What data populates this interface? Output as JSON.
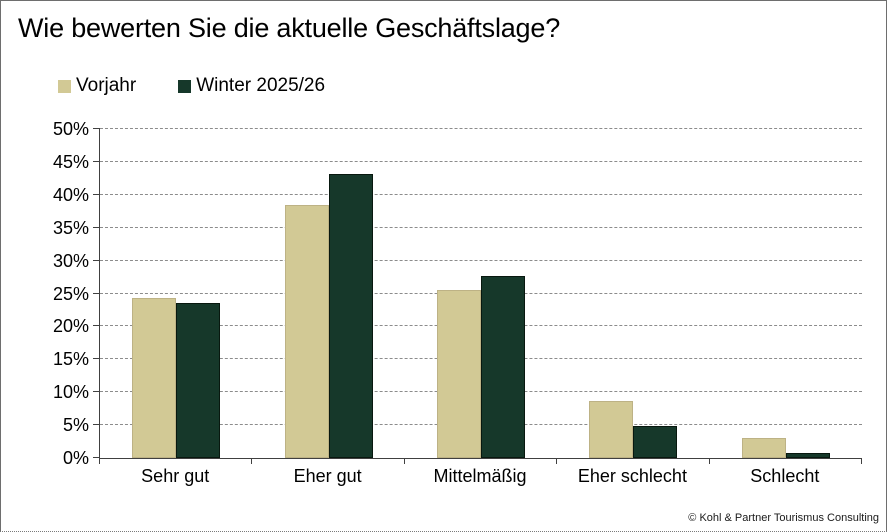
{
  "footer": "© Kohl & Partner Tourismus Consulting",
  "colors": {
    "vorjahr_fill": "#d2c995",
    "vorjahr_border": "#bdb285",
    "winter_fill": "#16382a",
    "winter_border": "#08180f",
    "gridline": "#8c8c8c",
    "axis": "#404040"
  },
  "chart_data": {
    "type": "bar",
    "title": "Wie bewerten Sie die aktuelle Geschäftslage?",
    "categories": [
      "Sehr gut",
      "Eher gut",
      "Mittelmäßig",
      "Eher schlecht",
      "Schlecht"
    ],
    "series": [
      {
        "name": "Vorjahr",
        "color": "#d2c995",
        "values": [
          24.3,
          38.5,
          25.5,
          8.7,
          3.0
        ]
      },
      {
        "name": "Winter 2025/26",
        "color": "#16382a",
        "values": [
          23.5,
          43.1,
          27.6,
          4.9,
          0.7
        ]
      }
    ],
    "xlabel": "",
    "ylabel": "",
    "ylim": [
      0,
      50
    ],
    "ytick_step": 5,
    "ytick_suffix": "%",
    "grid": true,
    "legend_position": "top-left"
  }
}
